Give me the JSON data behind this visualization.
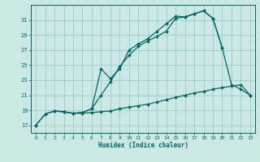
{
  "bg_color": "#cce8e4",
  "grid_color": "#99cccc",
  "line_color": "#006666",
  "xlabel": "Humidex (Indice chaleur)",
  "xlim": [
    -0.5,
    23.5
  ],
  "ylim": [
    16.0,
    33.0
  ],
  "yticks": [
    17,
    19,
    21,
    23,
    25,
    27,
    29,
    31
  ],
  "xticks": [
    0,
    1,
    2,
    3,
    4,
    5,
    6,
    7,
    8,
    9,
    10,
    11,
    12,
    13,
    14,
    15,
    16,
    17,
    18,
    19,
    20,
    21,
    22,
    23
  ],
  "line1_x": [
    0,
    1,
    2,
    3,
    4,
    5,
    6,
    7,
    8,
    9,
    10,
    11,
    12,
    13,
    14,
    15,
    16,
    17,
    18,
    19,
    20,
    21,
    22,
    23
  ],
  "line1_y": [
    17.0,
    18.5,
    18.9,
    18.8,
    18.6,
    18.6,
    18.7,
    18.8,
    18.9,
    19.2,
    19.4,
    19.6,
    19.8,
    20.1,
    20.4,
    20.7,
    21.0,
    21.3,
    21.5,
    21.8,
    22.0,
    22.2,
    22.4,
    21.0
  ],
  "line2_x": [
    0,
    1,
    2,
    3,
    4,
    5,
    6,
    7,
    8,
    9,
    10,
    11,
    12,
    13,
    14,
    15,
    16,
    17,
    18,
    19,
    20,
    21,
    22,
    23
  ],
  "line2_y": [
    17.0,
    18.5,
    18.9,
    18.8,
    18.6,
    18.7,
    19.2,
    21.0,
    22.8,
    24.8,
    26.3,
    27.5,
    28.2,
    28.8,
    29.5,
    31.2,
    31.4,
    31.8,
    32.2,
    31.2,
    27.3,
    22.4,
    21.8,
    21.0
  ],
  "line3_x": [
    2,
    3,
    4,
    5,
    6,
    7,
    8,
    9,
    10,
    11,
    12,
    13,
    14,
    15,
    16,
    17,
    18,
    19,
    20
  ],
  "line3_y": [
    18.9,
    18.8,
    18.6,
    18.7,
    19.2,
    24.5,
    23.2,
    24.5,
    27.0,
    27.8,
    28.5,
    29.5,
    30.5,
    31.5,
    31.4,
    31.8,
    32.2,
    31.2,
    27.3
  ]
}
